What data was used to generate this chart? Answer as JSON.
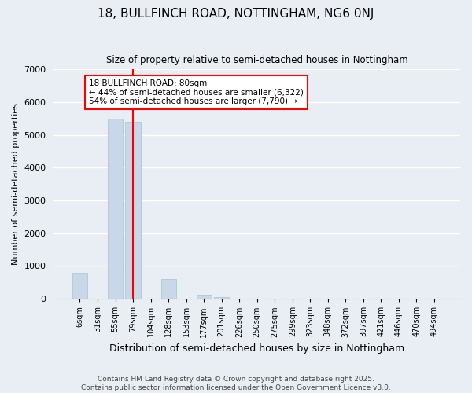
{
  "title": "18, BULLFINCH ROAD, NOTTINGHAM, NG6 0NJ",
  "subtitle": "Size of property relative to semi-detached houses in Nottingham",
  "xlabel": "Distribution of semi-detached houses by size in Nottingham",
  "ylabel": "Number of semi-detached properties",
  "categories": [
    "6sqm",
    "31sqm",
    "55sqm",
    "79sqm",
    "104sqm",
    "128sqm",
    "153sqm",
    "177sqm",
    "201sqm",
    "226sqm",
    "250sqm",
    "275sqm",
    "299sqm",
    "323sqm",
    "348sqm",
    "372sqm",
    "397sqm",
    "421sqm",
    "446sqm",
    "470sqm",
    "494sqm"
  ],
  "values": [
    800,
    0,
    5500,
    5400,
    0,
    600,
    0,
    130,
    60,
    0,
    0,
    0,
    0,
    0,
    0,
    0,
    0,
    0,
    0,
    0,
    0
  ],
  "bar_color": "#c8d8e8",
  "bar_edgecolor": "#a8c0d0",
  "vline_x_index": 3,
  "vline_color": "red",
  "annotation_text": "18 BULLFINCH ROAD: 80sqm\n← 44% of semi-detached houses are smaller (6,322)\n54% of semi-detached houses are larger (7,790) →",
  "annotation_box_color": "white",
  "annotation_box_edgecolor": "red",
  "ylim": [
    0,
    7000
  ],
  "background_color": "#e8eef4",
  "footer": "Contains HM Land Registry data © Crown copyright and database right 2025.\nContains public sector information licensed under the Open Government Licence v3.0."
}
